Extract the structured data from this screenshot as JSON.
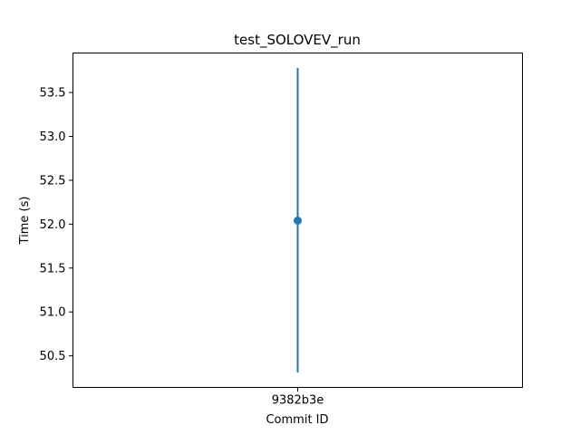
{
  "chart_data": {
    "type": "scatter",
    "title": "test_SOLOVEV_run",
    "xlabel": "Commit ID",
    "ylabel": "Time (s)",
    "categories": [
      "9382b3e"
    ],
    "series": [
      {
        "values": [
          52.04
        ],
        "error_low": [
          50.31
        ],
        "error_high": [
          53.78
        ],
        "color": "#1f77b4"
      }
    ],
    "yticks": [
      50.5,
      51.0,
      51.5,
      52.0,
      52.5,
      53.0,
      53.5
    ],
    "ytick_labels": [
      "50.5",
      "51.0",
      "51.5",
      "52.0",
      "52.5",
      "53.0",
      "53.5"
    ],
    "ylim": [
      50.14,
      53.95
    ],
    "grid": false,
    "legend": "none"
  }
}
